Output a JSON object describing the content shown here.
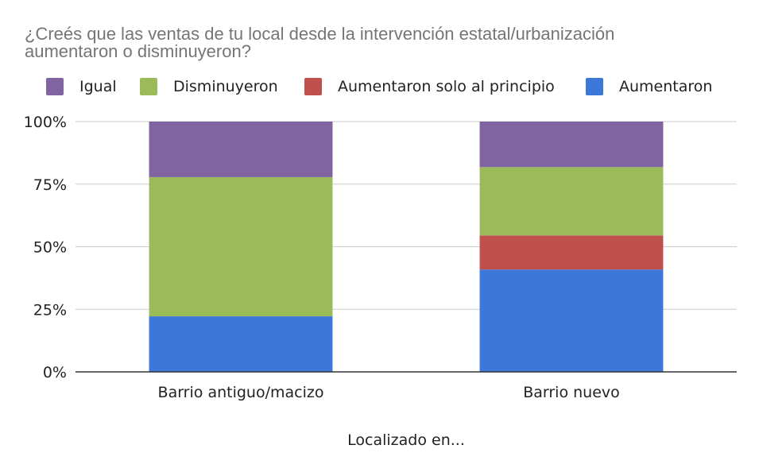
{
  "chart_data": {
    "type": "bar",
    "stacked": true,
    "normalized": true,
    "title_lines": [
      "¿Creés que las ventas de tu local desde la intervención estatal/urbanización",
      "aumentaron o disminuyeron?"
    ],
    "xlabel": "Localizado en...",
    "ylabel": "",
    "categories": [
      "Barrio antiguo/macizo",
      "Barrio nuevo"
    ],
    "series": [
      {
        "name": "Aumentaron",
        "color": "#3c78d8",
        "values": [
          22.2,
          40.9
        ]
      },
      {
        "name": "Aumentaron solo al principio",
        "color": "#c0504d",
        "values": [
          0,
          13.6
        ]
      },
      {
        "name": "Disminuyeron",
        "color": "#9bbb59",
        "values": [
          55.6,
          27.3
        ]
      },
      {
        "name": "Igual",
        "color": "#8064a2",
        "values": [
          22.2,
          18.2
        ]
      }
    ],
    "legend_order": [
      "Igual",
      "Disminuyeron",
      "Aumentaron solo al principio",
      "Aumentaron"
    ],
    "legend_position": "top",
    "yticks": [
      "0%",
      "25%",
      "50%",
      "75%",
      "100%"
    ],
    "ylim": [
      0,
      100
    ],
    "grid": true
  }
}
